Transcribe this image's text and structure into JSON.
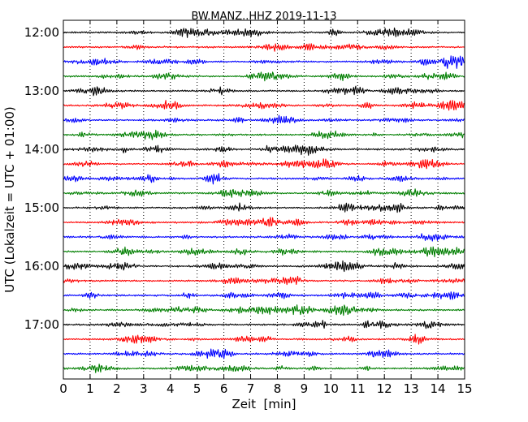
{
  "chart_data": {
    "type": "line",
    "title": "BW.MANZ..HHZ 2019-11-13",
    "xlabel": "Zeit  [min]",
    "ylabel": "UTC (Lokalzeit = UTC + 01:00)",
    "xlim": [
      0,
      15
    ],
    "x_ticks": [
      "0",
      "1",
      "2",
      "3",
      "4",
      "5",
      "6",
      "7",
      "8",
      "9",
      "10",
      "11",
      "12",
      "13",
      "14",
      "15"
    ],
    "y_tick_labels": [
      "12:00",
      "13:00",
      "14:00",
      "15:00",
      "16:00",
      "17:00"
    ],
    "grid": "vertical dotted lines at each minute",
    "trace_colors": [
      "#000000",
      "#ff0000",
      "#0000ff",
      "#007f00"
    ],
    "series": [
      {
        "start": "12:00",
        "color": "#000000"
      },
      {
        "start": "12:15",
        "color": "#ff0000"
      },
      {
        "start": "12:30",
        "color": "#0000ff"
      },
      {
        "start": "12:45",
        "color": "#007f00"
      },
      {
        "start": "13:00",
        "color": "#000000"
      },
      {
        "start": "13:15",
        "color": "#ff0000"
      },
      {
        "start": "13:30",
        "color": "#0000ff"
      },
      {
        "start": "13:45",
        "color": "#007f00"
      },
      {
        "start": "14:00",
        "color": "#000000"
      },
      {
        "start": "14:15",
        "color": "#ff0000"
      },
      {
        "start": "14:30",
        "color": "#0000ff"
      },
      {
        "start": "14:45",
        "color": "#007f00"
      },
      {
        "start": "15:00",
        "color": "#000000"
      },
      {
        "start": "15:15",
        "color": "#ff0000"
      },
      {
        "start": "15:30",
        "color": "#0000ff"
      },
      {
        "start": "15:45",
        "color": "#007f00"
      },
      {
        "start": "16:00",
        "color": "#000000"
      },
      {
        "start": "16:15",
        "color": "#ff0000"
      },
      {
        "start": "16:30",
        "color": "#0000ff"
      },
      {
        "start": "16:45",
        "color": "#007f00"
      },
      {
        "start": "17:00",
        "color": "#000000"
      },
      {
        "start": "17:15",
        "color": "#ff0000"
      },
      {
        "start": "17:30",
        "color": "#0000ff"
      },
      {
        "start": "17:45",
        "color": "#007f00"
      }
    ]
  }
}
